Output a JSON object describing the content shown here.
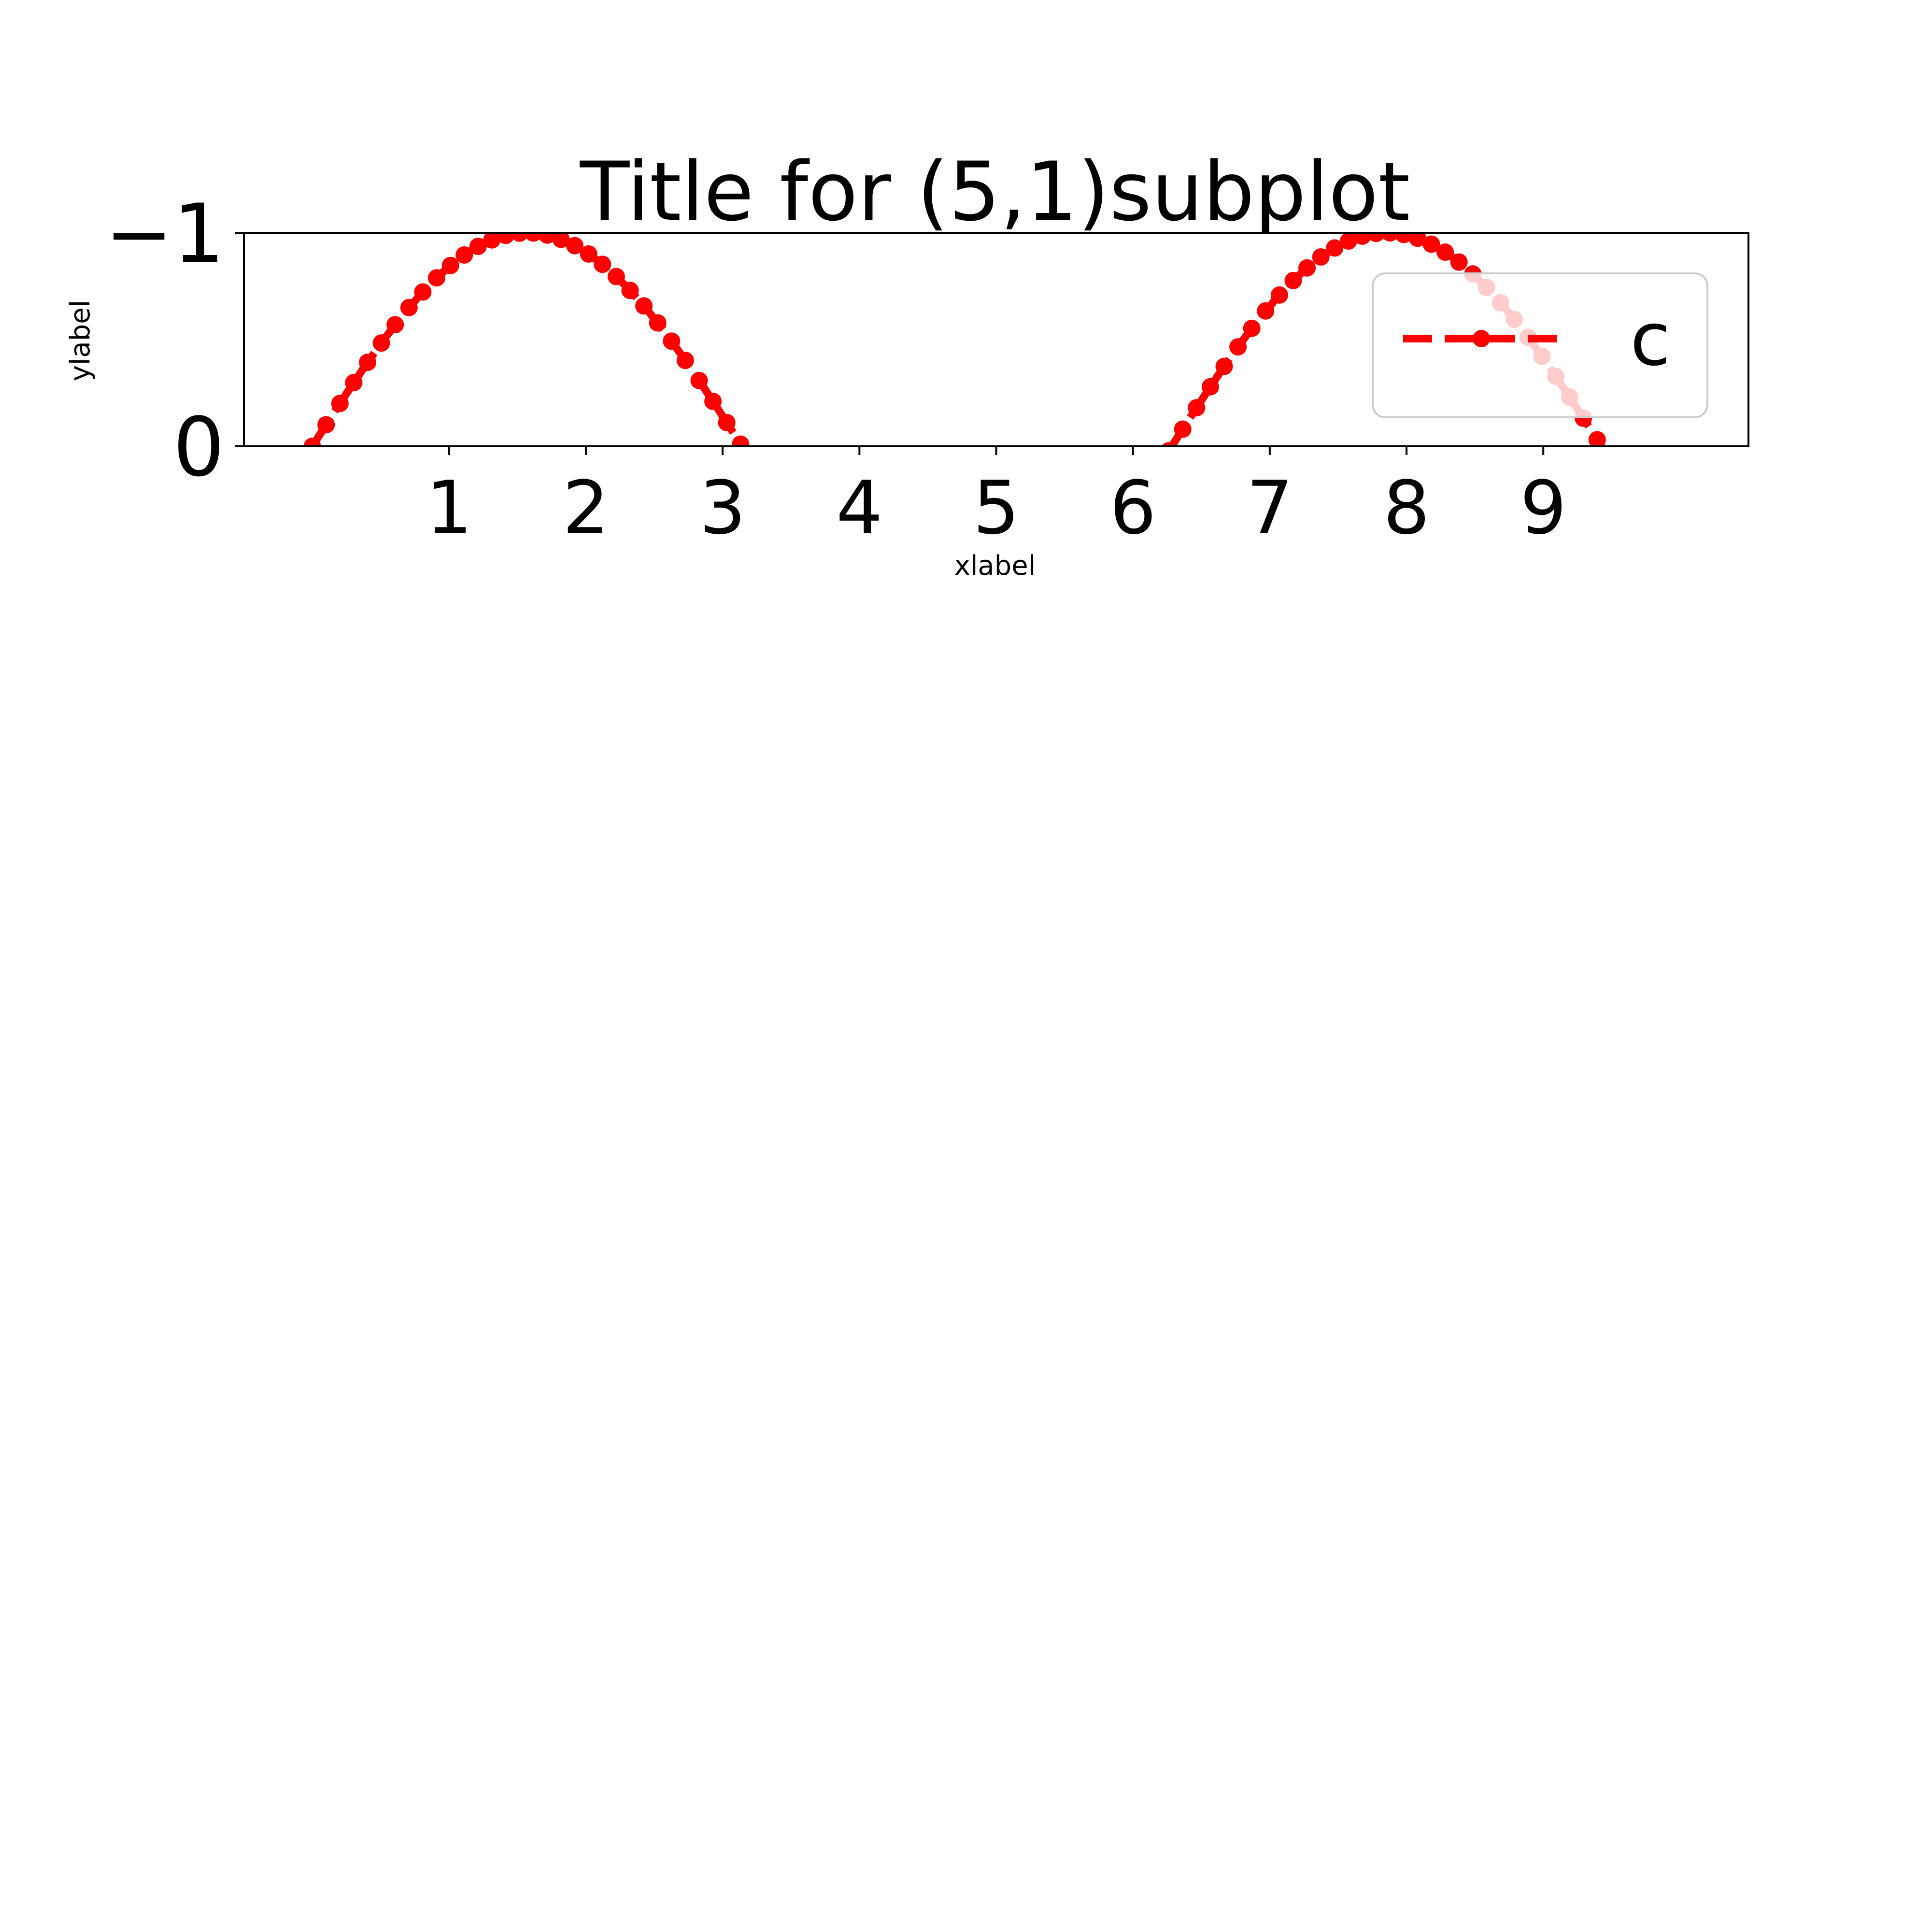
{
  "chart_data": {
    "type": "line",
    "title": "Title for (5,1)subplot",
    "xlabel": "xlabel",
    "ylabel": "ylabel",
    "xlim": [
      -0.5,
      10.5
    ],
    "ylim": [
      0,
      -1
    ],
    "x_ticks": [
      1,
      2,
      3,
      4,
      5,
      6,
      7,
      8,
      9
    ],
    "x_tick_labels": [
      "1",
      "2",
      "3",
      "4",
      "5",
      "6",
      "7",
      "8",
      "9"
    ],
    "y_ticks": [
      -1,
      0
    ],
    "y_tick_labels": [
      "−1",
      "0"
    ],
    "grid": false,
    "legend": {
      "placement": "upper right"
    },
    "series": [
      {
        "name": "c",
        "function": "-sin(x)",
        "x_start": 0,
        "x_end": 10,
        "points": 100,
        "color": "#ff0000",
        "linestyle": "dashed",
        "marker": "circle"
      }
    ]
  }
}
